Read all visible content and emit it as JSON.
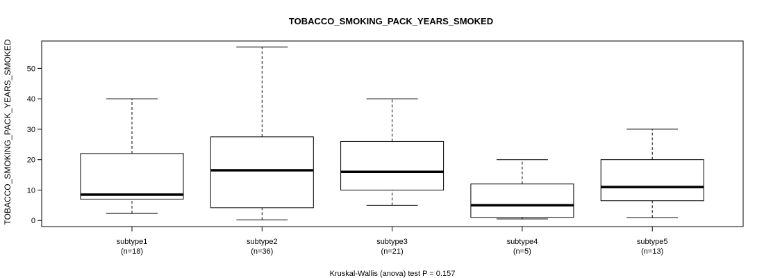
{
  "chart_data": {
    "type": "boxplot",
    "title": "TOBACCO_SMOKING_PACK_YEARS_SMOKED",
    "xlabel": "",
    "ylabel": "TOBACCO_SMOKING_PACK_YEARS_SMOKED",
    "ylim": [
      -2,
      59
    ],
    "yticks": [
      0,
      10,
      20,
      30,
      40,
      50
    ],
    "grid": false,
    "caption": "Kruskal-Wallis (anova) test P = 0.157",
    "groups": [
      {
        "name": "subtype1",
        "n_label": "(n=18)",
        "whisker_low": 2.3,
        "q1": 7.0,
        "median": 8.5,
        "q3": 22.0,
        "whisker_high": 40.0
      },
      {
        "name": "subtype2",
        "n_label": "(n=36)",
        "whisker_low": 0.2,
        "q1": 4.2,
        "median": 16.5,
        "q3": 27.5,
        "whisker_high": 57.0
      },
      {
        "name": "subtype3",
        "n_label": "(n=21)",
        "whisker_low": 5.0,
        "q1": 10.0,
        "median": 16.0,
        "q3": 26.0,
        "whisker_high": 40.0
      },
      {
        "name": "subtype4",
        "n_label": "(n=5)",
        "whisker_low": 0.5,
        "q1": 1.0,
        "median": 5.0,
        "q3": 12.0,
        "whisker_high": 20.0
      },
      {
        "name": "subtype5",
        "n_label": "(n=13)",
        "whisker_low": 0.9,
        "q1": 6.5,
        "median": 11.0,
        "q3": 20.0,
        "whisker_high": 30.0
      }
    ]
  }
}
